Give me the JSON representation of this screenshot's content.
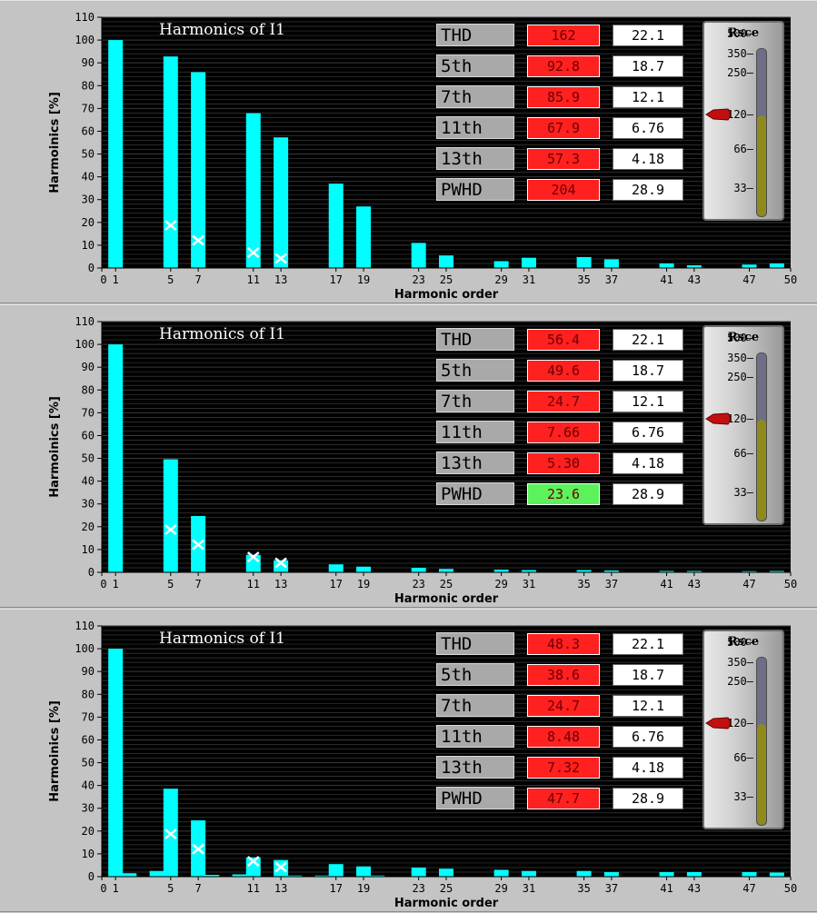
{
  "chart_data": [
    {
      "type": "bar",
      "title": "Harmonics of I1",
      "xlabel": "Harmonic order",
      "ylabel": "Harmoinics [%]",
      "xlim": [
        0,
        50
      ],
      "ylim": [
        0,
        110
      ],
      "x_ticks": [
        0,
        1,
        5,
        7,
        11,
        13,
        17,
        19,
        23,
        25,
        29,
        31,
        35,
        37,
        41,
        43,
        47,
        50
      ],
      "y_ticks": [
        0,
        10,
        20,
        30,
        40,
        50,
        60,
        70,
        80,
        90,
        100,
        110
      ],
      "bars": [
        {
          "x": 1,
          "y": 100
        },
        {
          "x": 5,
          "y": 92.8
        },
        {
          "x": 7,
          "y": 85.9
        },
        {
          "x": 11,
          "y": 67.9
        },
        {
          "x": 13,
          "y": 57.3
        },
        {
          "x": 17,
          "y": 37
        },
        {
          "x": 19,
          "y": 27
        },
        {
          "x": 23,
          "y": 11
        },
        {
          "x": 25,
          "y": 5.5
        },
        {
          "x": 29,
          "y": 3
        },
        {
          "x": 31,
          "y": 4.5
        },
        {
          "x": 35,
          "y": 4.8
        },
        {
          "x": 37,
          "y": 3.8
        },
        {
          "x": 41,
          "y": 2
        },
        {
          "x": 43,
          "y": 1.2
        },
        {
          "x": 47,
          "y": 1.5
        },
        {
          "x": 49,
          "y": 2
        }
      ],
      "limit_markers": [
        {
          "x": 5,
          "y": 18.7
        },
        {
          "x": 7,
          "y": 12.1
        },
        {
          "x": 11,
          "y": 6.76
        },
        {
          "x": 13,
          "y": 4.18
        }
      ],
      "table": [
        {
          "label": "THD",
          "value": "162",
          "limit": "22.1",
          "status": "fail"
        },
        {
          "label": "5th",
          "value": "92.8",
          "limit": "18.7",
          "status": "fail"
        },
        {
          "label": "7th",
          "value": "85.9",
          "limit": "12.1",
          "status": "fail"
        },
        {
          "label": "11th",
          "value": "67.9",
          "limit": "6.76",
          "status": "fail"
        },
        {
          "label": "13th",
          "value": "57.3",
          "limit": "4.18",
          "status": "fail"
        },
        {
          "label": "PWHD",
          "value": "204",
          "limit": "28.9",
          "status": "fail"
        }
      ],
      "gauge": {
        "title": "Rsce",
        "ticks": [
          "500",
          "350",
          "250",
          "120",
          "66",
          "33"
        ],
        "value": 120
      }
    },
    {
      "type": "bar",
      "title": "Harmonics of I1",
      "xlabel": "Harmonic order",
      "ylabel": "Harmoinics [%]",
      "xlim": [
        0,
        50
      ],
      "ylim": [
        0,
        110
      ],
      "x_ticks": [
        0,
        1,
        5,
        7,
        11,
        13,
        17,
        19,
        23,
        25,
        29,
        31,
        35,
        37,
        41,
        43,
        47,
        50
      ],
      "y_ticks": [
        0,
        10,
        20,
        30,
        40,
        50,
        60,
        70,
        80,
        90,
        100,
        110
      ],
      "bars": [
        {
          "x": 1,
          "y": 100
        },
        {
          "x": 5,
          "y": 49.6
        },
        {
          "x": 7,
          "y": 24.7
        },
        {
          "x": 11,
          "y": 7.66
        },
        {
          "x": 13,
          "y": 5.3
        },
        {
          "x": 17,
          "y": 3.5
        },
        {
          "x": 19,
          "y": 2.5
        },
        {
          "x": 23,
          "y": 2
        },
        {
          "x": 25,
          "y": 1.5
        },
        {
          "x": 29,
          "y": 1.2
        },
        {
          "x": 31,
          "y": 1
        },
        {
          "x": 35,
          "y": 1
        },
        {
          "x": 37,
          "y": 0.8
        },
        {
          "x": 41,
          "y": 0.6
        },
        {
          "x": 43,
          "y": 0.6
        },
        {
          "x": 47,
          "y": 0.5
        },
        {
          "x": 49,
          "y": 0.6
        }
      ],
      "limit_markers": [
        {
          "x": 5,
          "y": 18.7
        },
        {
          "x": 7,
          "y": 12.1
        },
        {
          "x": 11,
          "y": 6.76
        },
        {
          "x": 13,
          "y": 4.18
        }
      ],
      "table": [
        {
          "label": "THD",
          "value": "56.4",
          "limit": "22.1",
          "status": "fail"
        },
        {
          "label": "5th",
          "value": "49.6",
          "limit": "18.7",
          "status": "fail"
        },
        {
          "label": "7th",
          "value": "24.7",
          "limit": "12.1",
          "status": "fail"
        },
        {
          "label": "11th",
          "value": "7.66",
          "limit": "6.76",
          "status": "fail"
        },
        {
          "label": "13th",
          "value": "5.30",
          "limit": "4.18",
          "status": "fail"
        },
        {
          "label": "PWHD",
          "value": "23.6",
          "limit": "28.9",
          "status": "pass"
        }
      ],
      "gauge": {
        "title": "Rsce",
        "ticks": [
          "500",
          "350",
          "250",
          "120",
          "66",
          "33"
        ],
        "value": 120
      }
    },
    {
      "type": "bar",
      "title": "Harmonics of I1",
      "xlabel": "Harmonic order",
      "ylabel": "Harmoinics [%]",
      "xlim": [
        0,
        50
      ],
      "ylim": [
        0,
        110
      ],
      "x_ticks": [
        0,
        1,
        5,
        7,
        11,
        13,
        17,
        19,
        23,
        25,
        29,
        31,
        35,
        37,
        41,
        43,
        47,
        50
      ],
      "y_ticks": [
        0,
        10,
        20,
        30,
        40,
        50,
        60,
        70,
        80,
        90,
        100,
        110
      ],
      "bars": [
        {
          "x": 1,
          "y": 100
        },
        {
          "x": 2,
          "y": 1.5
        },
        {
          "x": 4,
          "y": 2.5
        },
        {
          "x": 5,
          "y": 38.6
        },
        {
          "x": 7,
          "y": 24.7
        },
        {
          "x": 8,
          "y": 0.8
        },
        {
          "x": 10,
          "y": 1
        },
        {
          "x": 11,
          "y": 8.48
        },
        {
          "x": 13,
          "y": 7.32
        },
        {
          "x": 14,
          "y": 0.5
        },
        {
          "x": 16,
          "y": 0.5
        },
        {
          "x": 17,
          "y": 5.5
        },
        {
          "x": 19,
          "y": 4.5
        },
        {
          "x": 20,
          "y": 0.5
        },
        {
          "x": 23,
          "y": 4
        },
        {
          "x": 25,
          "y": 3.5
        },
        {
          "x": 29,
          "y": 3
        },
        {
          "x": 31,
          "y": 2.5
        },
        {
          "x": 35,
          "y": 2.5
        },
        {
          "x": 37,
          "y": 2
        },
        {
          "x": 41,
          "y": 2
        },
        {
          "x": 43,
          "y": 2
        },
        {
          "x": 47,
          "y": 2
        },
        {
          "x": 49,
          "y": 1.8
        }
      ],
      "limit_markers": [
        {
          "x": 5,
          "y": 18.7
        },
        {
          "x": 7,
          "y": 12.1
        },
        {
          "x": 11,
          "y": 6.76
        },
        {
          "x": 13,
          "y": 4.18
        }
      ],
      "table": [
        {
          "label": "THD",
          "value": "48.3",
          "limit": "22.1",
          "status": "fail"
        },
        {
          "label": "5th",
          "value": "38.6",
          "limit": "18.7",
          "status": "fail"
        },
        {
          "label": "7th",
          "value": "24.7",
          "limit": "12.1",
          "status": "fail"
        },
        {
          "label": "11th",
          "value": "8.48",
          "limit": "6.76",
          "status": "fail"
        },
        {
          "label": "13th",
          "value": "7.32",
          "limit": "4.18",
          "status": "fail"
        },
        {
          "label": "PWHD",
          "value": "47.7",
          "limit": "28.9",
          "status": "fail"
        }
      ],
      "gauge": {
        "title": "Rsce",
        "ticks": [
          "500",
          "350",
          "250",
          "120",
          "66",
          "33"
        ],
        "value": 120
      }
    }
  ],
  "colors": {
    "bar": "#00ffff",
    "plot_bg": "#000000",
    "grid": "#3a3a3a",
    "fail": "#ff2020",
    "pass": "#5cf25c",
    "title": "#ffffff"
  }
}
